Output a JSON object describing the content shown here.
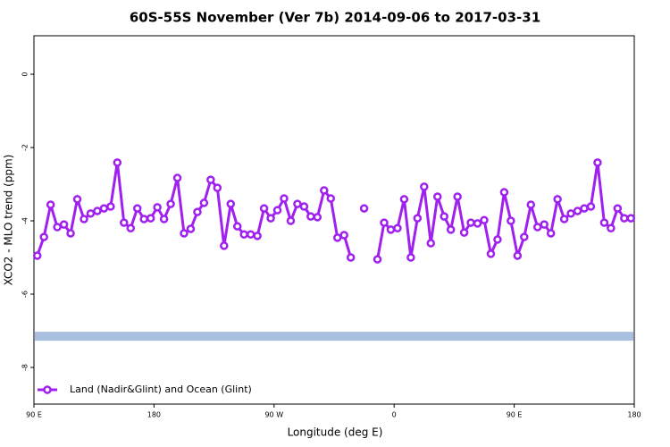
{
  "chart_data": {
    "type": "line",
    "title": "60S-55S November (Ver 7b)   2014-09-06 to 2017-03-31",
    "x_label": "Longitude (deg E)",
    "y_label": "XCO2 - MLO trend (ppm)",
    "xlim": [
      90,
      540
    ],
    "ylim": [
      -9,
      1.05
    ],
    "xticks": [
      {
        "value": 90,
        "label": "90 E"
      },
      180,
      {
        "value": 270,
        "label": "90 W"
      },
      {
        "value": 360,
        "label": "0"
      },
      {
        "value": 450,
        "label": "90 E"
      },
      {
        "value": 540,
        "label": "180"
      }
    ],
    "yticks": [
      0,
      -2,
      -4,
      -6,
      -8
    ],
    "legend": "bottom-left",
    "reference_line": {
      "value": -7.15,
      "color": "#a8bfe0"
    },
    "x": [
      92.5,
      97.5,
      102.5,
      107.5,
      112.5,
      117.5,
      122.5,
      127.5,
      132.5,
      137.5,
      142.5,
      147.5,
      152.5,
      157.5,
      162.5,
      167.5,
      172.5,
      177.5,
      182.5,
      187.5,
      192.5,
      197.5,
      202.5,
      207.5,
      212.5,
      217.5,
      222.5,
      227.5,
      232.5,
      237.5,
      242.5,
      247.5,
      252.5,
      257.5,
      262.5,
      267.5,
      272.5,
      277.5,
      282.5,
      287.5,
      292.5,
      297.5,
      302.5,
      307.5,
      312.5,
      317.5,
      322.5,
      327.5,
      332.5,
      337.5,
      342.5,
      347.5,
      352.5,
      357.5,
      362.5,
      367.5,
      372.5,
      377.5,
      382.5,
      387.5,
      392.5,
      397.5,
      402.5,
      407.5,
      412.5,
      417.5,
      422.5,
      427.5,
      432.5,
      437.5,
      442.5,
      447.5,
      452.5,
      457.5,
      462.5,
      467.5,
      472.5,
      477.5,
      482.5,
      487.5,
      492.5,
      497.5,
      502.5,
      507.5,
      512.5,
      517.5,
      522.5,
      527.5,
      532.5,
      537.5
    ],
    "series": [
      {
        "name": "Land (Nadir&Glint) and Ocean (Glint)",
        "color": "#a020f0",
        "values": [
          -4.95,
          -4.44,
          -3.56,
          -4.17,
          -4.1,
          -4.34,
          -3.41,
          -3.95,
          -3.8,
          -3.73,
          -3.66,
          -3.61,
          -2.41,
          -4.05,
          -4.2,
          -3.66,
          -3.95,
          -3.93,
          -3.63,
          -3.95,
          -3.54,
          -2.83,
          -4.34,
          -4.22,
          -3.76,
          -3.51,
          -2.88,
          -3.1,
          -4.68,
          -3.54,
          -4.15,
          -4.37,
          -4.37,
          -4.41,
          -3.66,
          -3.93,
          -3.71,
          -3.39,
          -4.0,
          -3.54,
          -3.61,
          -3.88,
          -3.9,
          -3.17,
          -3.39,
          -4.46,
          -4.39,
          -5.0,
          null,
          -3.66,
          null,
          -5.05,
          -4.05,
          -4.24,
          -4.2,
          -3.41,
          -5.0,
          -3.93,
          -3.07,
          -4.61,
          -3.34,
          -3.88,
          -4.24,
          -3.34,
          -4.32,
          -4.05,
          -4.07,
          -3.98,
          -4.9,
          -4.51,
          -3.22,
          -4.0,
          -4.95,
          -4.44,
          -3.56,
          -4.17,
          -4.1,
          -4.34,
          -3.41,
          -3.95,
          -3.8,
          -3.73,
          -3.66,
          -3.61,
          -2.41,
          -4.05,
          -4.2,
          -3.66,
          -3.93,
          -3.93
        ]
      }
    ]
  }
}
